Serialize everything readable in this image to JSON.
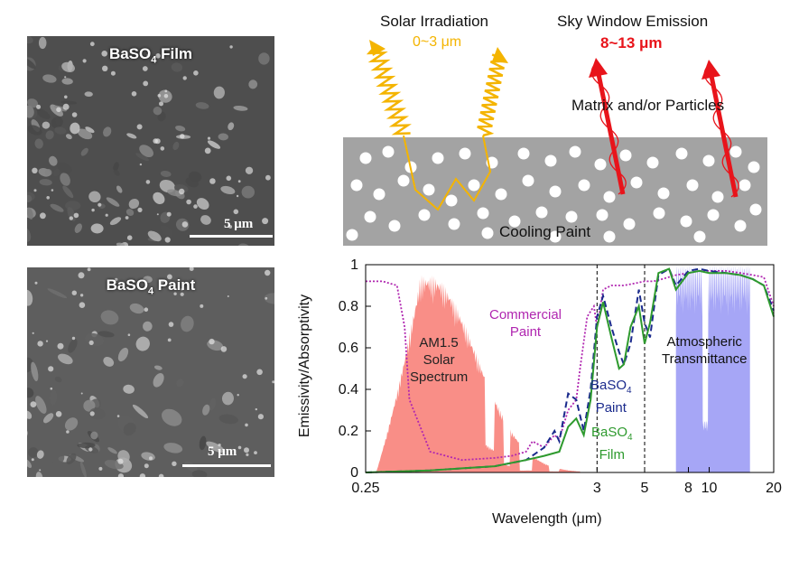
{
  "figure": {
    "sem_panels": [
      {
        "label_main": "BaSO",
        "label_sub": "4",
        "label_tail": " Film",
        "scale_label": "5 μm"
      },
      {
        "label_main": "BaSO",
        "label_sub": "4",
        "label_tail": " Paint",
        "scale_label": "5 μm"
      }
    ],
    "schematic": {
      "solar_title": "Solar Irradiation",
      "solar_range": "0~3 μm",
      "sky_title": "Sky Window Emission",
      "sky_range": "8~13 μm",
      "matrix_label": "Matrix and/or Particles",
      "paint_label": "Cooling Paint"
    },
    "colors": {
      "solar": "#f4b400",
      "sky": "#e8141b",
      "paint_gray": "#a3a3a3",
      "am15": "#f87a72",
      "atmos": "#6b6bf0",
      "commercial": "#b026b0",
      "baso4_paint": "#1a2a8c",
      "baso4_film": "#2e9a2e"
    }
  },
  "chart_data": {
    "type": "line",
    "xlabel": "Wavelength (μm)",
    "ylabel": "Emissivity/Absorptivity",
    "xscale": "log",
    "xlim": [
      0.25,
      20
    ],
    "ylim": [
      0,
      1
    ],
    "xticks": [
      {
        "value": 0.25,
        "label": "0.25"
      },
      {
        "value": 3,
        "label": "3"
      },
      {
        "value": 5,
        "label": "5"
      },
      {
        "value": 8,
        "label": "8"
      },
      {
        "value": 10,
        "label": "10"
      },
      {
        "value": 20,
        "label": "20"
      }
    ],
    "yticks": [
      {
        "value": 0,
        "label": "0"
      },
      {
        "value": 0.2,
        "label": "0.2"
      },
      {
        "value": 0.4,
        "label": "0.4"
      },
      {
        "value": 0.6,
        "label": "0.6"
      },
      {
        "value": 0.8,
        "label": "0.8"
      },
      {
        "value": 1,
        "label": "1"
      }
    ],
    "guides": [
      3,
      5
    ],
    "series": [
      {
        "name": "Commercial Paint",
        "x": [
          0.25,
          0.3,
          0.35,
          0.38,
          0.4,
          0.5,
          0.7,
          1.0,
          1.2,
          1.4,
          1.5,
          1.7,
          1.9,
          2.0,
          2.2,
          2.4,
          2.5,
          2.7,
          2.9,
          3.0,
          3.2,
          3.5,
          4.0,
          4.5,
          5.0,
          5.5,
          6.0,
          7.0,
          8.0,
          9.0,
          10.0,
          12.0,
          14.0,
          16.0,
          18.0,
          20.0
        ],
        "y": [
          0.92,
          0.92,
          0.9,
          0.7,
          0.35,
          0.1,
          0.06,
          0.07,
          0.08,
          0.1,
          0.15,
          0.12,
          0.18,
          0.16,
          0.3,
          0.35,
          0.5,
          0.75,
          0.8,
          0.7,
          0.88,
          0.9,
          0.9,
          0.91,
          0.92,
          0.92,
          0.93,
          0.95,
          0.96,
          0.97,
          0.97,
          0.97,
          0.96,
          0.95,
          0.94,
          0.8
        ]
      },
      {
        "name": "BaSO4 Paint",
        "x": [
          0.25,
          0.5,
          1.0,
          1.4,
          1.7,
          1.9,
          2.0,
          2.2,
          2.4,
          2.6,
          2.8,
          3.0,
          3.2,
          3.5,
          3.8,
          4.0,
          4.3,
          4.7,
          5.0,
          5.3,
          5.8,
          6.5,
          7.0,
          8.0,
          9.0,
          10.0,
          12.0,
          14.0,
          16.0,
          18.0,
          20.0
        ],
        "y": [
          0.0,
          0.01,
          0.03,
          0.06,
          0.12,
          0.2,
          0.15,
          0.38,
          0.35,
          0.2,
          0.4,
          0.75,
          0.85,
          0.7,
          0.58,
          0.52,
          0.62,
          0.88,
          0.72,
          0.65,
          0.95,
          0.98,
          0.9,
          0.97,
          0.98,
          0.97,
          0.96,
          0.95,
          0.93,
          0.9,
          0.78
        ]
      },
      {
        "name": "BaSO4 Film",
        "x": [
          0.25,
          0.5,
          1.0,
          1.4,
          1.7,
          2.0,
          2.2,
          2.4,
          2.6,
          2.8,
          3.0,
          3.2,
          3.5,
          3.8,
          4.0,
          4.3,
          4.7,
          5.0,
          5.3,
          5.8,
          6.5,
          7.0,
          8.0,
          9.0,
          10.0,
          12.0,
          14.0,
          16.0,
          18.0,
          20.0
        ],
        "y": [
          0.0,
          0.01,
          0.03,
          0.06,
          0.08,
          0.1,
          0.22,
          0.26,
          0.18,
          0.35,
          0.7,
          0.82,
          0.65,
          0.5,
          0.52,
          0.7,
          0.8,
          0.62,
          0.72,
          0.96,
          0.98,
          0.88,
          0.96,
          0.97,
          0.96,
          0.96,
          0.95,
          0.93,
          0.9,
          0.75
        ]
      }
    ],
    "annotations": [
      {
        "text": "Commercial Paint",
        "lines": [
          "Commercial",
          "Paint"
        ],
        "color": "#b026b0"
      },
      {
        "text": "AM1.5 Solar Spectrum",
        "lines": [
          "AM1.5",
          "Solar",
          "Spectrum"
        ],
        "color": "#222222"
      },
      {
        "text": "BaSO4 Paint",
        "lines": [
          "BaSO4",
          "Paint"
        ],
        "color": "#1a2a8c"
      },
      {
        "text": "BaSO4 Film",
        "lines": [
          "BaSO4",
          "Film"
        ],
        "color": "#2e9a2e"
      },
      {
        "text": "Atmospheric Transmittance",
        "lines": [
          "Atmospheric",
          "Transmittance"
        ],
        "color": "#111111"
      }
    ],
    "shaded_regions": [
      {
        "name": "AM1.5 Solar Spectrum",
        "x_range": [
          0.28,
          2.5
        ],
        "peak": 0.95
      },
      {
        "name": "Atmospheric Transmittance",
        "x_range": [
          7.0,
          15.5
        ],
        "peak": 1.0
      }
    ]
  }
}
